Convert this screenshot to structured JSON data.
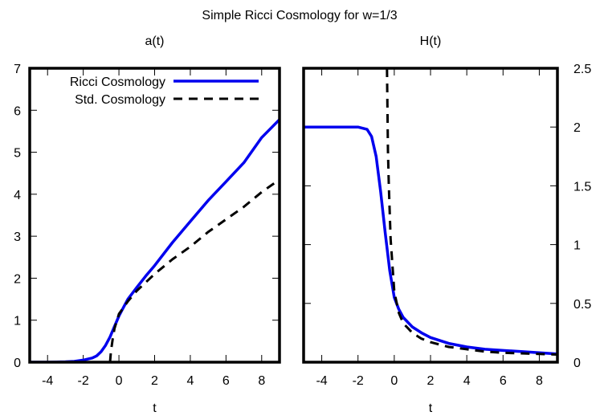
{
  "figure": {
    "title": "Simple Ricci Cosmology for w=1/3"
  },
  "chart_data": [
    {
      "type": "line",
      "title": "a(t)",
      "xlabel": "t",
      "ylabel": "",
      "xlim": [
        -5,
        9
      ],
      "ylim": [
        0,
        7
      ],
      "x_ticks": [
        -4,
        -2,
        0,
        2,
        4,
        6,
        8
      ],
      "y_ticks": [
        0,
        1,
        2,
        3,
        4,
        5,
        6,
        7
      ],
      "y_axis_side": "left",
      "grid": false,
      "zero_line": true,
      "legend": {
        "position": "top-left"
      },
      "series": [
        {
          "name": "Ricci Cosmology",
          "color": "#0000ee",
          "style": "solid",
          "x": [
            -5,
            -4,
            -3,
            -2.5,
            -2,
            -1.5,
            -1.25,
            -1,
            -0.75,
            -0.5,
            -0.25,
            0,
            0.25,
            0.5,
            1,
            1.5,
            2,
            3,
            4,
            5,
            6,
            7,
            8,
            9
          ],
          "y": [
            0,
            0,
            0.01,
            0.02,
            0.05,
            0.1,
            0.15,
            0.25,
            0.4,
            0.6,
            0.85,
            1.1,
            1.3,
            1.5,
            1.78,
            2.05,
            2.3,
            2.85,
            3.35,
            3.85,
            4.3,
            4.75,
            5.35,
            5.78
          ]
        },
        {
          "name": "Std. Cosmology",
          "color": "#000000",
          "style": "dashed",
          "x": [
            -0.5,
            -0.45,
            -0.35,
            -0.25,
            0,
            0.5,
            1,
            2,
            3,
            4,
            5,
            6,
            7,
            8,
            9
          ],
          "y": [
            0,
            0.25,
            0.55,
            0.8,
            1.15,
            1.45,
            1.7,
            2.1,
            2.45,
            2.75,
            3.1,
            3.4,
            3.7,
            4.05,
            4.35
          ]
        }
      ]
    },
    {
      "type": "line",
      "title": "H(t)",
      "xlabel": "t",
      "ylabel": "",
      "xlim": [
        -5,
        9
      ],
      "ylim": [
        0,
        2.5
      ],
      "x_ticks": [
        -4,
        -2,
        0,
        2,
        4,
        6,
        8
      ],
      "y_ticks": [
        0,
        0.5,
        1,
        1.5,
        2,
        2.5
      ],
      "y_axis_side": "right",
      "grid": false,
      "zero_line": true,
      "series": [
        {
          "name": "Ricci Cosmology",
          "color": "#0000ee",
          "style": "solid",
          "x": [
            -5,
            -3,
            -2,
            -1.5,
            -1.25,
            -1,
            -0.75,
            -0.5,
            -0.25,
            0,
            0.25,
            0.5,
            1,
            1.5,
            2,
            3,
            4,
            5,
            6,
            7,
            8,
            9
          ],
          "y": [
            2,
            2,
            2,
            1.98,
            1.92,
            1.75,
            1.45,
            1.1,
            0.78,
            0.55,
            0.45,
            0.38,
            0.3,
            0.25,
            0.21,
            0.16,
            0.13,
            0.11,
            0.1,
            0.09,
            0.08,
            0.07
          ]
        },
        {
          "name": "Std. Cosmology",
          "color": "#000000",
          "style": "dashed",
          "x": [
            -0.4,
            -0.38,
            -0.35,
            -0.3,
            -0.2,
            0,
            0.25,
            0.5,
            1,
            1.5,
            2,
            3,
            4,
            5,
            6,
            7,
            8,
            9
          ],
          "y": [
            2.5,
            2.2,
            1.8,
            1.5,
            1.05,
            0.6,
            0.42,
            0.33,
            0.25,
            0.2,
            0.17,
            0.13,
            0.11,
            0.09,
            0.08,
            0.075,
            0.07,
            0.065
          ]
        }
      ]
    }
  ]
}
